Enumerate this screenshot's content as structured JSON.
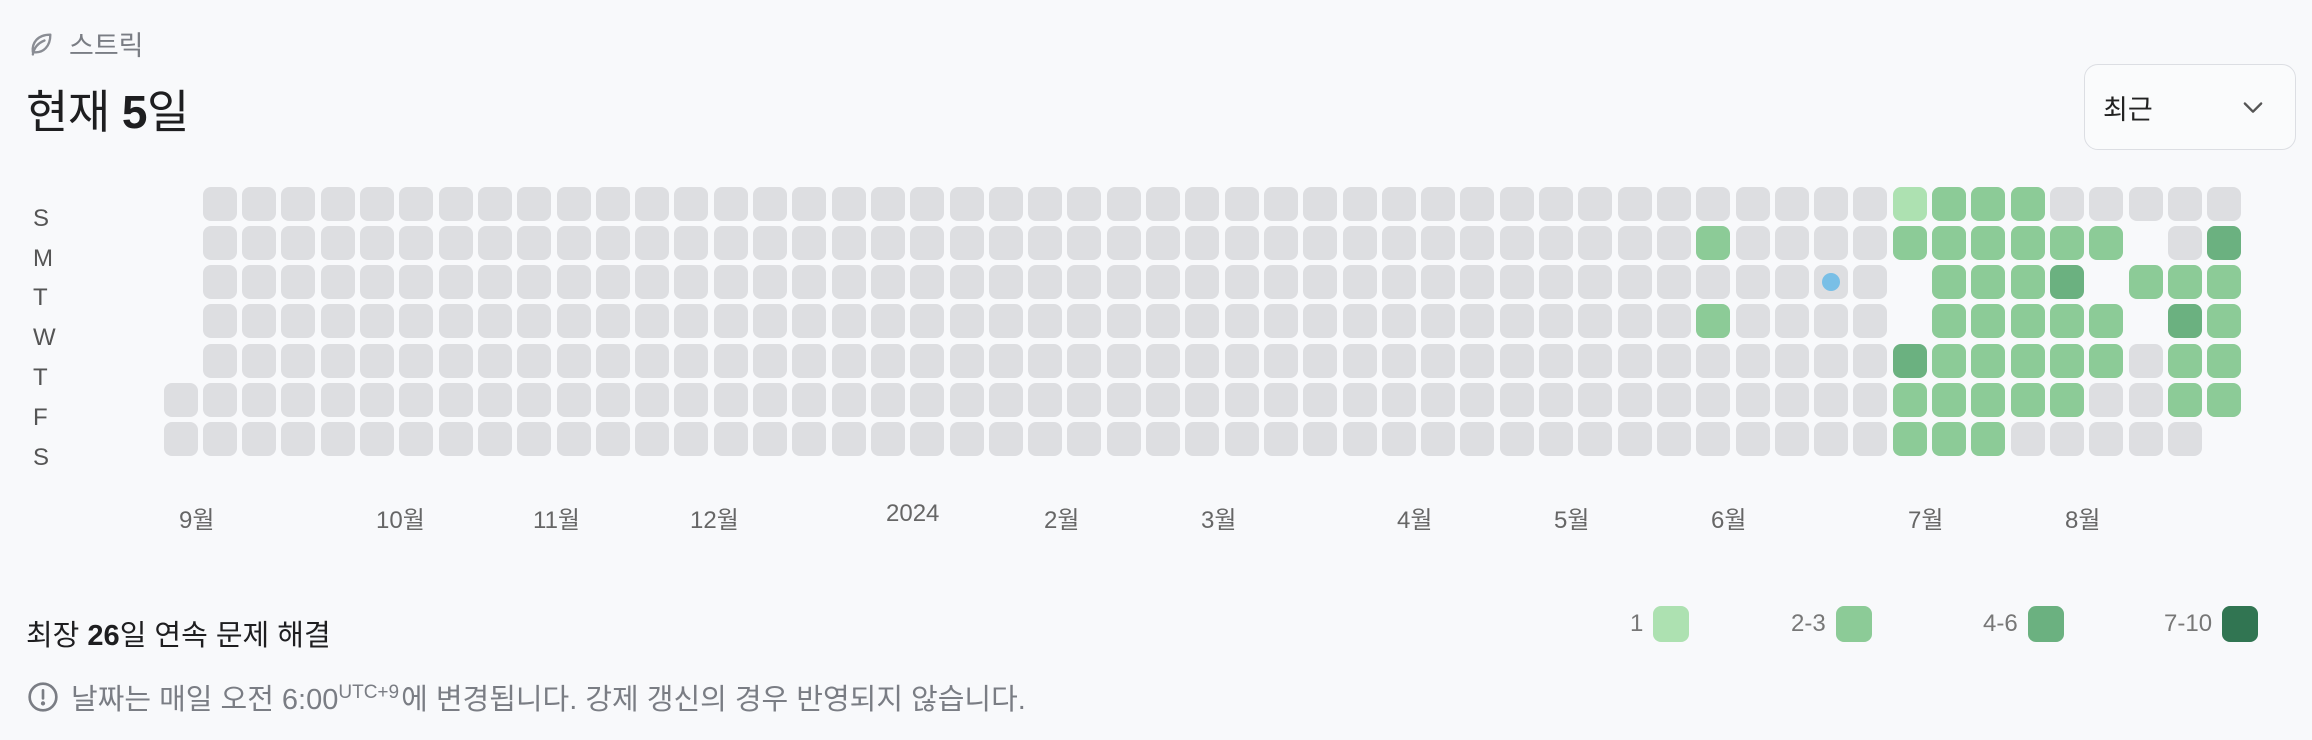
{
  "header": {
    "label": "스트릭",
    "title_prefix": "현재 ",
    "current_streak": "5",
    "title_suffix": "일"
  },
  "dropdown": {
    "selected": "최근"
  },
  "day_labels": [
    "S",
    "M",
    "T",
    "W",
    "T",
    "F",
    "S"
  ],
  "months": [
    "9월",
    "10월",
    "11월",
    "12월",
    "2024",
    "2월",
    "3월",
    "4월",
    "5월",
    "6월",
    "7월",
    "8월"
  ],
  "longest": {
    "prefix": "최장 ",
    "value": "26",
    "suffix": "일 연속 문제 해결"
  },
  "legend": [
    {
      "label": "1",
      "color": "#ade1b1"
    },
    {
      "label": "2-3",
      "color": "#8ccb97"
    },
    {
      "label": "4-6",
      "color": "#6bb180"
    },
    {
      "label": "7-10",
      "color": "#317552"
    }
  ],
  "note": {
    "before": "날짜는 매일 오전 6:00",
    "sup": "UTC+9",
    "after": "에 변경됩니다. 강제 갱신의 경우 반영되지 않습니다."
  },
  "colors": {
    "empty": "#dddee1",
    "today_dot": "#79bfe6"
  },
  "heatmap": {
    "weeks": 53,
    "first_week_start_day": 5,
    "last_week_end_day": 5,
    "today": {
      "week": 42,
      "day": 2
    },
    "levels": {
      "39-1": 1,
      "39-3": 1,
      "44-0": 0,
      "44-1": 1,
      "44-2": 4,
      "44-3": 4,
      "44-4": 2,
      "44-5": 1,
      "44-6": 1,
      "45-0": 1,
      "45-1": 1,
      "45-2": 1,
      "45-3": 1,
      "45-4": 1,
      "45-5": 1,
      "45-6": 1,
      "46-0": 1,
      "46-1": 1,
      "46-2": 1,
      "46-3": 1,
      "46-4": 1,
      "46-5": 1,
      "46-6": 1,
      "47-0": 1,
      "47-1": 1,
      "47-2": 1,
      "47-3": 1,
      "47-4": 1,
      "47-5": 1,
      "48-1": 1,
      "48-2": 2,
      "48-3": 1,
      "48-4": 1,
      "48-5": 1,
      "49-1": 1,
      "49-2": 4,
      "49-3": 1,
      "49-4": 1,
      "50-1": 4,
      "50-2": 1,
      "50-3": 4,
      "51-2": 1,
      "51-3": 2,
      "51-4": 1,
      "51-5": 1,
      "52-1": 2,
      "52-2": 1,
      "52-3": 1,
      "52-4": 1,
      "52-5": 1
    }
  }
}
